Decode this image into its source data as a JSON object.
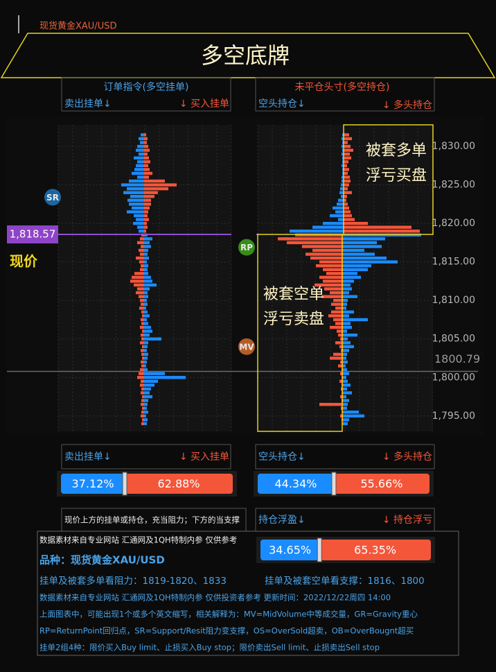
{
  "header": {
    "instrument": "现货黄金XAU/USD",
    "title": "多空底牌"
  },
  "order_panel": {
    "title": "订单指令(多空挂单)",
    "left_label": "卖出挂单↓",
    "right_label": "↓ 买入挂单"
  },
  "position_panel": {
    "title": "未平仓头寸(多空持仓)",
    "left_label": "空头持仓↓",
    "right_label": "↓ 多头持仓"
  },
  "chart": {
    "ylim": [
      1793,
      1832.8
    ],
    "yticks": [
      {
        "value": 1830,
        "label": "1,830.00"
      },
      {
        "value": 1825,
        "label": "1,825.00"
      },
      {
        "value": 1820,
        "label": "1,820.00"
      },
      {
        "value": 1815,
        "label": "1,815.00"
      },
      {
        "value": 1810,
        "label": "1,810.00"
      },
      {
        "value": 1805,
        "label": "1,805.00"
      },
      {
        "value": 1800,
        "label": "1,800.00"
      },
      {
        "value": 1795,
        "label": "1,795.00"
      }
    ],
    "current_price": {
      "value": 1818.57,
      "label": "1,818.57"
    },
    "current_price_caption": "现价",
    "last_price": {
      "value": 1800.79,
      "label": "1800.79"
    },
    "markers": [
      {
        "label": "SR",
        "price": 1823.4
      },
      {
        "label": "RP",
        "price": 1816.9
      },
      {
        "label": "MV",
        "price": 1804.0
      }
    ],
    "annotations": [
      {
        "lines": [
          "被套多单",
          "浮亏买盘"
        ]
      },
      {
        "lines": [
          "被套空单",
          "浮亏卖盘"
        ]
      }
    ],
    "prices": [
      1831.5,
      1831,
      1830.5,
      1830,
      1829.5,
      1829,
      1828.5,
      1828,
      1827.5,
      1827,
      1826.5,
      1826,
      1825.5,
      1825,
      1824.5,
      1824,
      1823.5,
      1823,
      1822.5,
      1822,
      1821.5,
      1821,
      1820.5,
      1820,
      1819.5,
      1819,
      1818.5,
      1818,
      1817.5,
      1817,
      1816.5,
      1816,
      1815.5,
      1815,
      1814.5,
      1814,
      1813.5,
      1813,
      1812.5,
      1812,
      1811.5,
      1811,
      1810.5,
      1810,
      1809.5,
      1809,
      1808.5,
      1808,
      1807.5,
      1807,
      1806.5,
      1806,
      1805.5,
      1805,
      1804.5,
      1804,
      1803.5,
      1803,
      1802.5,
      1802,
      1801.5,
      1801,
      1800.5,
      1800,
      1799.5,
      1799,
      1798.5,
      1798,
      1797.5,
      1797,
      1796.5,
      1796,
      1795.5,
      1795,
      1794.5,
      1794
    ],
    "order_book": {
      "left": [
        0.05,
        0.08,
        0.06,
        0.1,
        0.12,
        0.08,
        0.15,
        0.1,
        0.12,
        0.14,
        0.18,
        0.1,
        0.22,
        0.33,
        0.25,
        0.3,
        0.2,
        0.24,
        0.22,
        0.18,
        0.25,
        0.15,
        0.12,
        0.16,
        0.1,
        0.08,
        0.04,
        0.06,
        0.1,
        0.05,
        0.08,
        0.06,
        0.12,
        0.07,
        0.05,
        0.06,
        0.14,
        0.18,
        0.2,
        0.15,
        0.1,
        0.12,
        0.08,
        0.06,
        0.05,
        0.07,
        0.04,
        0.03,
        0.05,
        0.04,
        0.06,
        0.03,
        0.05,
        0.04,
        0.06,
        0.03,
        0.05,
        0.04,
        0.03,
        0.05,
        0.04,
        0.06,
        0.08,
        0.1,
        0.05,
        0.06,
        0.04,
        0.05,
        0.03,
        0.04,
        0.05,
        0.03,
        0.04,
        0.05,
        0.03,
        0.04
      ],
      "right": [
        0.03,
        0.05,
        0.04,
        0.06,
        0.08,
        0.05,
        0.07,
        0.09,
        0.06,
        0.08,
        0.12,
        0.07,
        0.3,
        0.47,
        0.35,
        0.2,
        0.15,
        0.1,
        0.1,
        0.08,
        0.06,
        0.05,
        0.07,
        0.04,
        0.05,
        0.03,
        0.05,
        0.12,
        0.08,
        0.1,
        0.06,
        0.05,
        0.07,
        0.04,
        0.06,
        0.05,
        0.06,
        0.1,
        0.12,
        0.18,
        0.08,
        0.05,
        0.06,
        0.04,
        0.05,
        0.03,
        0.05,
        0.08,
        0.04,
        0.06,
        0.1,
        0.12,
        0.08,
        0.25,
        0.06,
        0.05,
        0.04,
        0.06,
        0.05,
        0.04,
        0.03,
        0.05,
        0.3,
        0.6,
        0.2,
        0.15,
        0.1,
        0.08,
        0.12,
        0.06,
        0.05,
        0.04,
        0.06,
        0.03,
        0.05,
        0.04
      ]
    },
    "positions": {
      "left": [
        0.02,
        0.03,
        0.02,
        0.03,
        0.02,
        0.03,
        0.02,
        0.02,
        0.03,
        0.02,
        0.02,
        0.03,
        0.03,
        0.04,
        0.05,
        0.06,
        0.04,
        0.08,
        0.1,
        0.16,
        0.12,
        0.2,
        0.08,
        0.3,
        0.45,
        0.78,
        0.7,
        0.95,
        0.82,
        0.6,
        0.45,
        0.55,
        0.48,
        0.35,
        0.4,
        0.3,
        0.25,
        0.35,
        0.3,
        0.42,
        0.28,
        0.2,
        0.32,
        0.15,
        0.18,
        0.12,
        0.18,
        0.22,
        0.15,
        0.12,
        0.2,
        0.1,
        0.08,
        0.05,
        0.12,
        0.06,
        0.04,
        0.15,
        0.2,
        0.05,
        0.08,
        0.03,
        0.05,
        0.02,
        0.06,
        0.03,
        0.04,
        0.02,
        0.05,
        0.03,
        0.35,
        0.04,
        0.02,
        0.05,
        0.03,
        0.02
      ],
      "right": [
        0.08,
        0.12,
        0.06,
        0.1,
        0.14,
        0.09,
        0.11,
        0.07,
        0.05,
        0.08,
        0.06,
        0.09,
        0.1,
        0.08,
        0.06,
        0.12,
        0.05,
        0.04,
        0.06,
        0.08,
        0.1,
        0.12,
        0.16,
        0.35,
        0.98,
        1.1,
        1.12,
        0.6,
        0.48,
        0.55,
        0.3,
        0.45,
        0.62,
        0.78,
        0.4,
        0.35,
        0.2,
        0.25,
        0.15,
        0.1,
        0.12,
        0.08,
        0.2,
        0.06,
        0.05,
        0.04,
        0.15,
        0.08,
        0.35,
        0.1,
        0.12,
        0.05,
        0.2,
        0.06,
        0.1,
        0.15,
        0.08,
        0.05,
        0.04,
        0.06,
        0.03,
        0.05,
        0.08,
        0.04,
        0.06,
        0.1,
        0.05,
        0.12,
        0.04,
        0.08,
        0.06,
        0.05,
        0.22,
        0.3,
        0.08,
        0.06
      ]
    }
  },
  "ratios": {
    "orders": {
      "left": {
        "value": 37.12,
        "label": "37.12%"
      },
      "right": {
        "value": 62.88,
        "label": "62.88%"
      }
    },
    "positions": {
      "left": {
        "value": 44.34,
        "label": "44.34%"
      },
      "right": {
        "value": 55.66,
        "label": "55.66%"
      }
    },
    "profit_loss": {
      "left": {
        "value": 34.65,
        "label": "34.65%"
      },
      "right": {
        "value": 65.35,
        "label": "65.35%"
      }
    }
  },
  "profit_panel": {
    "left_label": "持仓浮盈↓",
    "right_label": "↓ 持仓浮亏"
  },
  "notes": {
    "rule": "现价上方的挂单或持仓，充当阻力；下方的当支撑",
    "source": "数据素材来自专业网站 汇通网及1QH特制内参 仅供参考",
    "symbol": "品种：现货黄金XAU/USD",
    "resistance": "挂单及被套多单看阻力：1819-1820、1833",
    "support": "挂单及被套空单看支撑：1816、1800",
    "lines": [
      "数据素材来自专业网站 汇通网及1QH特制内参 仅供投资者参考  更新时间：2022/12/22周四 14:00",
      "上面图表中，可能出现1个或多个英文缩写，相关解释为：MV=MidVolume中等成交量，GR=Gravity重心",
      "RP=ReturnPoint回归点，SR=Support/Resit阻力变支撑，OS=OverSold超卖，OB=OverBougnt超买",
      "挂单2组4种：限价买入Buy limit、止损买入Buy stop；限价卖出Sell limit、止损卖出Sell stop"
    ]
  }
}
